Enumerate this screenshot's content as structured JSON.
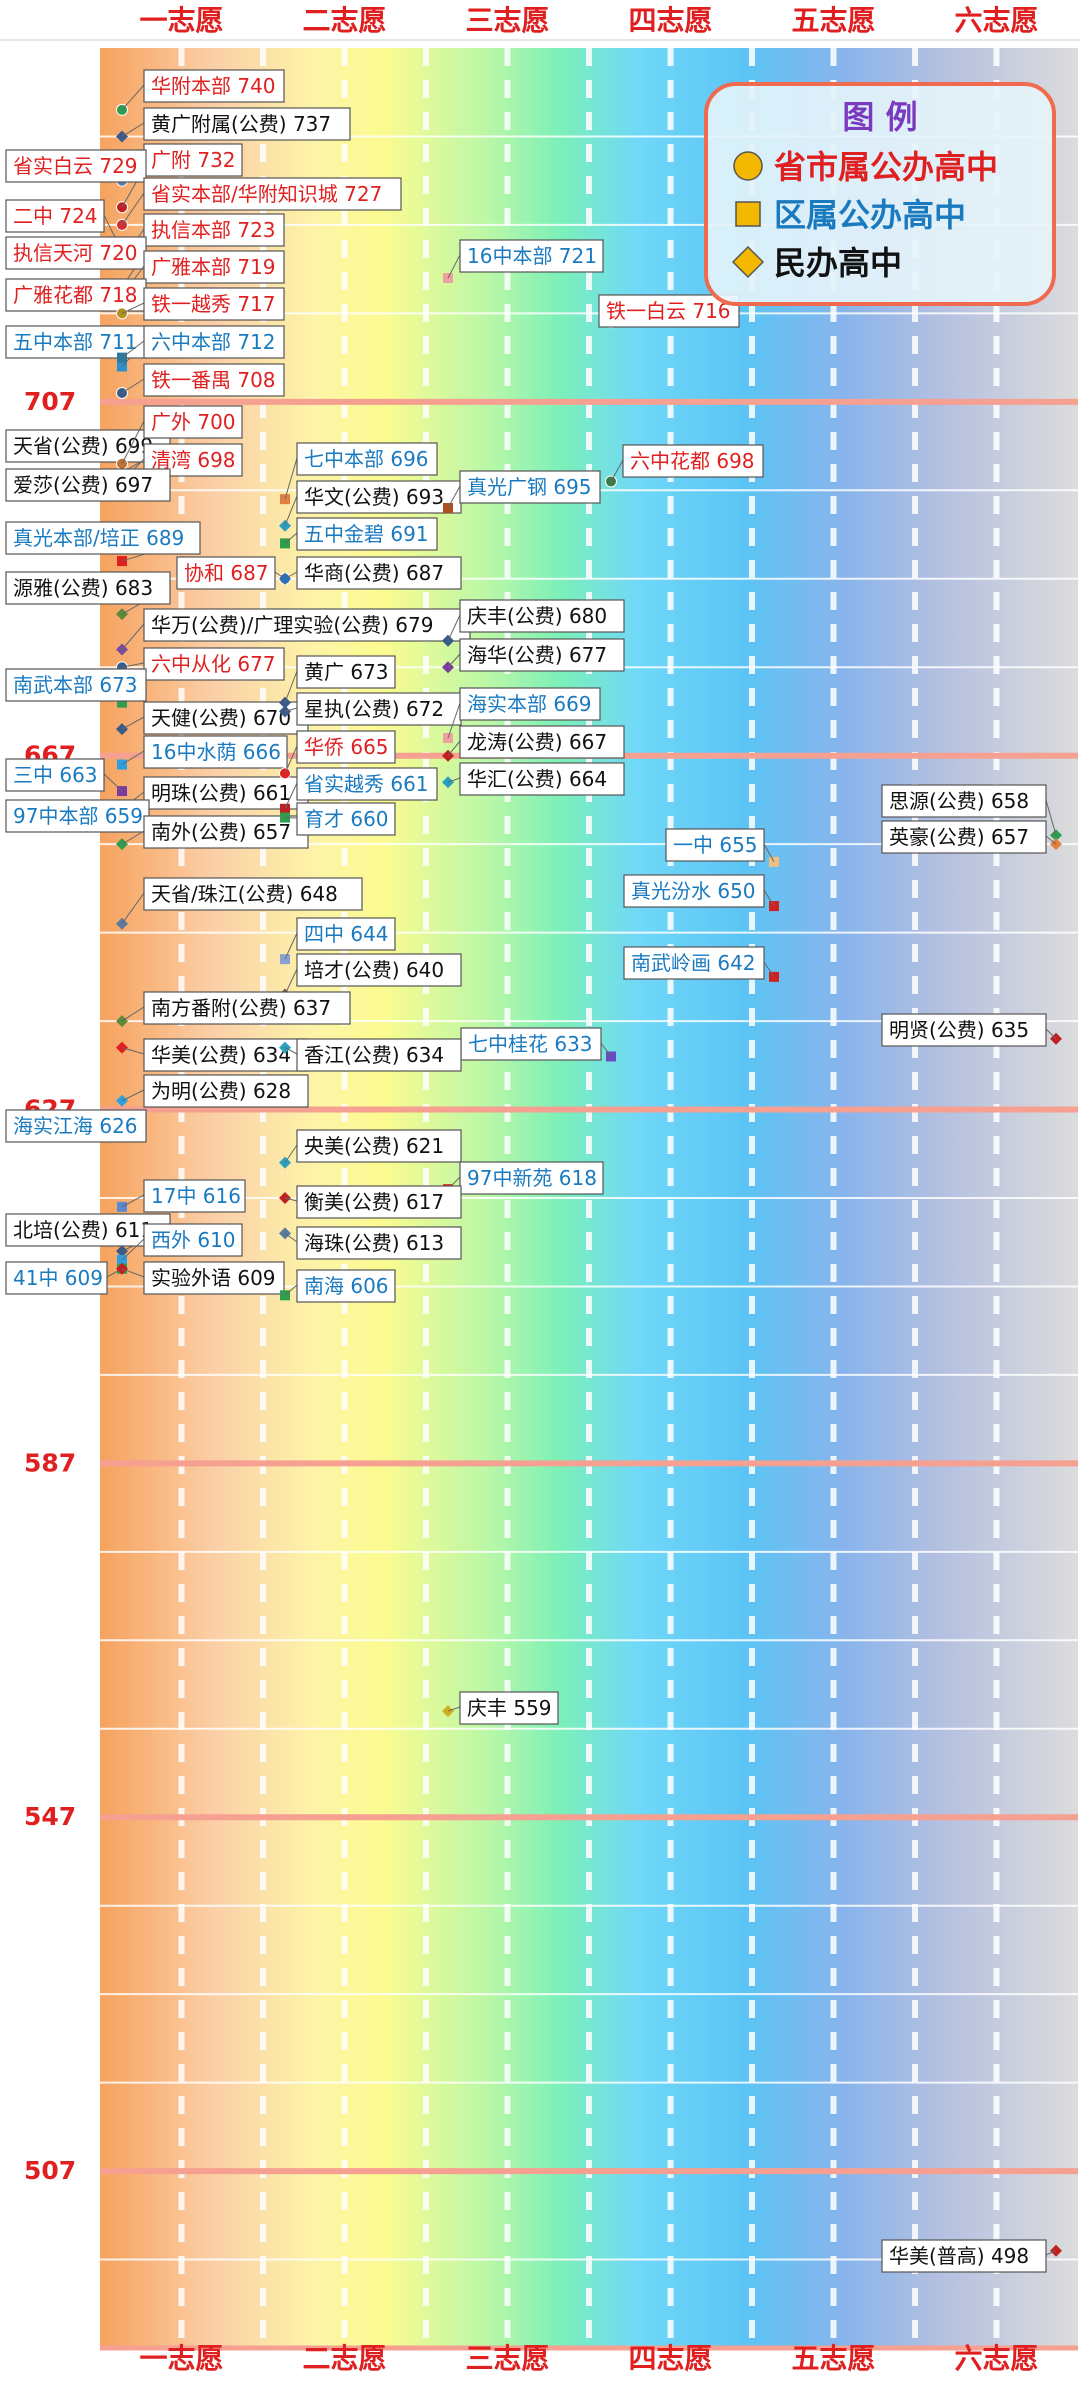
{
  "chart_data": {
    "type": "scatter",
    "title": "",
    "xlabel": "",
    "ylabel": "",
    "categories": [
      "一志愿",
      "二志愿",
      "三志愿",
      "四志愿",
      "五志愿",
      "六志愿"
    ],
    "ylim": [
      487,
      747
    ],
    "y_ticks": [
      "707",
      "667",
      "627",
      "587",
      "547",
      "507"
    ],
    "y_tick_values": [
      707,
      667,
      627,
      587,
      547,
      507
    ],
    "grid": true,
    "legend": {
      "title": "图 例",
      "placement": "top-right",
      "items": [
        {
          "label": "省市属公办高中",
          "shape": "circle",
          "color": "#f5b800",
          "text_color": "#e02020"
        },
        {
          "label": "区属公办高中",
          "shape": "square",
          "color": "#f5b800",
          "text_color": "#1a7ac0"
        },
        {
          "label": "民办高中",
          "shape": "diamond",
          "color": "#f5b800",
          "text_color": "#111111"
        }
      ]
    },
    "colors": {
      "provincial": "#e02020",
      "district": "#1a7ac0",
      "private": "#111111",
      "axis_red": "#e02020",
      "band_line": "#f5a090"
    },
    "points": [
      {
        "label": "华附本部 740",
        "school": "华附本部",
        "choice": 1,
        "score": 740,
        "group": "provincial",
        "marker": "#2e9e4e"
      },
      {
        "label": "黄广附属(公费) 737",
        "school": "黄广附属(公费)",
        "choice": 1,
        "score": 737,
        "group": "private",
        "marker": "#3a5a8a"
      },
      {
        "label": "广附 732",
        "school": "广附",
        "choice": 1,
        "score": 732,
        "group": "provincial",
        "marker": "#5a7aa0"
      },
      {
        "label": "省实白云 729",
        "school": "省实白云",
        "choice": 1,
        "score": 729,
        "group": "provincial",
        "marker": "#c02020"
      },
      {
        "label": "省实本部/华附知识城 727",
        "school": "省实本部/华附知识城",
        "choice": 1,
        "score": 727,
        "group": "provincial",
        "marker": "#d03030"
      },
      {
        "label": "二中 724",
        "school": "二中",
        "choice": 1,
        "score": 724,
        "group": "provincial",
        "marker": "#2a80c0"
      },
      {
        "label": "执信本部 723",
        "school": "执信本部",
        "choice": 1,
        "score": 723,
        "group": "provincial",
        "marker": "#e04040"
      },
      {
        "label": "执信天河 720",
        "school": "执信天河",
        "choice": 1,
        "score": 720,
        "group": "provincial",
        "marker": "#a06030"
      },
      {
        "label": "广雅本部 719",
        "school": "广雅本部",
        "choice": 1,
        "score": 719,
        "group": "provincial",
        "marker": "#7a5a3a"
      },
      {
        "label": "广雅花都 718",
        "school": "广雅花都",
        "choice": 1,
        "score": 718,
        "group": "provincial",
        "marker": "#c07030"
      },
      {
        "label": "铁一越秀 717",
        "school": "铁一越秀",
        "choice": 1,
        "score": 717,
        "group": "provincial",
        "marker": "#b09020"
      },
      {
        "label": "五中本部 711",
        "school": "五中本部",
        "choice": 1,
        "score": 711,
        "group": "district",
        "marker": "#2a90d0"
      },
      {
        "label": "六中本部 712",
        "school": "六中本部",
        "choice": 1,
        "score": 712,
        "group": "district",
        "marker": "#2a7aa0"
      },
      {
        "label": "铁一番禺 708",
        "school": "铁一番禺",
        "choice": 1,
        "score": 708,
        "group": "provincial",
        "marker": "#3a5a8a"
      },
      {
        "label": "16中本部 721",
        "school": "16中本部",
        "choice": 3,
        "score": 721,
        "group": "district",
        "marker": "#f0a0a0"
      },
      {
        "label": "铁一白云 716",
        "school": "铁一白云",
        "choice": 4,
        "score": 716,
        "group": "provincial",
        "marker": "#e0c080"
      },
      {
        "label": "天省(公费) 699",
        "school": "天省(公费)",
        "choice": 1,
        "score": 699,
        "group": "private",
        "marker": "#b07030"
      },
      {
        "label": "广外 700",
        "school": "广外",
        "choice": 1,
        "score": 700,
        "group": "provincial",
        "marker": "#c07030"
      },
      {
        "label": "清湾 698",
        "school": "清湾",
        "choice": 1,
        "score": 698,
        "group": "provincial",
        "marker": "#d03030"
      },
      {
        "label": "爱莎(公费) 697",
        "school": "爱莎(公费)",
        "choice": 1,
        "score": 697,
        "group": "private",
        "marker": "#3a5a8a"
      },
      {
        "label": "七中本部 696",
        "school": "七中本部",
        "choice": 2,
        "score": 696,
        "group": "district",
        "marker": "#e08040"
      },
      {
        "label": "华文(公费) 693",
        "school": "华文(公费)",
        "choice": 2,
        "score": 693,
        "group": "private",
        "marker": "#2aa0c0"
      },
      {
        "label": "五中金碧 691",
        "school": "五中金碧",
        "choice": 2,
        "score": 691,
        "group": "district",
        "marker": "#2e9e4e"
      },
      {
        "label": "真光本部/培正 689",
        "school": "真光本部/培正",
        "choice": 1,
        "score": 689,
        "group": "district",
        "marker": "#e02020"
      },
      {
        "label": "协和 687",
        "school": "协和",
        "choice": 2,
        "score": 687,
        "group": "provincial",
        "marker": "#a06030"
      },
      {
        "label": "华商(公费) 687",
        "school": "华商(公费)",
        "choice": 2,
        "score": 687,
        "group": "private",
        "marker": "#2a70c0"
      },
      {
        "label": "真光广钢 695",
        "school": "真光广钢",
        "choice": 3,
        "score": 695,
        "group": "district",
        "marker": "#b05020"
      },
      {
        "label": "六中花都 698",
        "school": "六中花都",
        "choice": 4,
        "score": 698,
        "group": "provincial",
        "marker": "#3a7a4a"
      },
      {
        "label": "源雅(公费) 683",
        "school": "源雅(公费)",
        "choice": 1,
        "score": 683,
        "group": "private",
        "marker": "#5a8a3a"
      },
      {
        "label": "华万(公费)/广理实验(公费) 679",
        "school": "华万(公费)/广理实验(公费)",
        "choice": 1,
        "score": 679,
        "group": "private",
        "marker": "#7a4aa0"
      },
      {
        "label": "六中从化 677",
        "school": "六中从化",
        "choice": 1,
        "score": 677,
        "group": "provincial",
        "marker": "#3a5a8a"
      },
      {
        "label": "南武本部 673",
        "school": "南武本部",
        "choice": 1,
        "score": 673,
        "group": "district",
        "marker": "#2e9e4e"
      },
      {
        "label": "天健(公费) 670",
        "school": "天健(公费)",
        "choice": 1,
        "score": 670,
        "group": "private",
        "marker": "#3a5a8a"
      },
      {
        "label": "16中水荫 666",
        "school": "16中水荫",
        "choice": 1,
        "score": 666,
        "group": "district",
        "marker": "#2aa0e0"
      },
      {
        "label": "三中 663",
        "school": "三中",
        "choice": 1,
        "score": 663,
        "group": "district",
        "marker": "#7a3aa0"
      },
      {
        "label": "明珠(公费) 661",
        "school": "明珠(公费)",
        "choice": 1,
        "score": 661,
        "group": "private",
        "marker": "#c02020"
      },
      {
        "label": "97中本部 659",
        "school": "97中本部",
        "choice": 1,
        "score": 659,
        "group": "district",
        "marker": "#2aa0e0"
      },
      {
        "label": "南外(公费) 657",
        "school": "南外(公费)",
        "choice": 1,
        "score": 657,
        "group": "private",
        "marker": "#2e9e4e"
      },
      {
        "label": "黄广 673",
        "school": "黄广",
        "choice": 2,
        "score": 673,
        "group": "private",
        "marker": "#3a5a8a"
      },
      {
        "label": "星执(公费) 672",
        "school": "星执(公费)",
        "choice": 2,
        "score": 672,
        "group": "private",
        "marker": "#3a5a8a"
      },
      {
        "label": "华侨 665",
        "school": "华侨",
        "choice": 2,
        "score": 665,
        "group": "provincial",
        "marker": "#e02020"
      },
      {
        "label": "省实越秀 661",
        "school": "省实越秀",
        "choice": 2,
        "score": 661,
        "group": "district",
        "marker": "#c02020"
      },
      {
        "label": "育才 660",
        "school": "育才",
        "choice": 2,
        "score": 660,
        "group": "district",
        "marker": "#2e9e4e"
      },
      {
        "label": "庆丰(公费) 680",
        "school": "庆丰(公费)",
        "choice": 3,
        "score": 680,
        "group": "private",
        "marker": "#3a5a8a"
      },
      {
        "label": "海华(公费) 677",
        "school": "海华(公费)",
        "choice": 3,
        "score": 677,
        "group": "private",
        "marker": "#7a3aa0"
      },
      {
        "label": "海实本部 669",
        "school": "海实本部",
        "choice": 3,
        "score": 669,
        "group": "district",
        "marker": "#f0a0a0"
      },
      {
        "label": "龙涛(公费) 667",
        "school": "龙涛(公费)",
        "choice": 3,
        "score": 667,
        "group": "private",
        "marker": "#c02020"
      },
      {
        "label": "华汇(公费) 664",
        "school": "华汇(公费)",
        "choice": 3,
        "score": 664,
        "group": "private",
        "marker": "#2aa0c0"
      },
      {
        "label": "思源(公费) 658",
        "school": "思源(公费)",
        "choice": 6,
        "score": 658,
        "group": "private",
        "marker": "#2e9e4e"
      },
      {
        "label": "英豪(公费) 657",
        "school": "英豪(公费)",
        "choice": 6,
        "score": 657,
        "group": "private",
        "marker": "#e08040"
      },
      {
        "label": "一中 655",
        "school": "一中",
        "choice": 5,
        "score": 655,
        "group": "district",
        "marker": "#f0c080"
      },
      {
        "label": "真光汾水 650",
        "school": "真光汾水",
        "choice": 5,
        "score": 650,
        "group": "district",
        "marker": "#d02020"
      },
      {
        "label": "天省/珠江(公费) 648",
        "school": "天省/珠江(公费)",
        "choice": 1,
        "score": 648,
        "group": "private",
        "marker": "#5a7aa0"
      },
      {
        "label": "四中 644",
        "school": "四中",
        "choice": 2,
        "score": 644,
        "group": "district",
        "marker": "#8aa0d0"
      },
      {
        "label": "培才(公费) 640",
        "school": "培才(公费)",
        "choice": 2,
        "score": 640,
        "group": "private",
        "marker": "#7a5a3a"
      },
      {
        "label": "南武岭画 642",
        "school": "南武岭画",
        "choice": 5,
        "score": 642,
        "group": "district",
        "marker": "#d02020"
      },
      {
        "label": "南方番附(公费) 637",
        "school": "南方番附(公费)",
        "choice": 1,
        "score": 637,
        "group": "private",
        "marker": "#5a8a3a"
      },
      {
        "label": "明贤(公费) 635",
        "school": "明贤(公费)",
        "choice": 6,
        "score": 635,
        "group": "private",
        "marker": "#c02020"
      },
      {
        "label": "七中桂花 633",
        "school": "七中桂花",
        "choice": 4,
        "score": 633,
        "group": "district",
        "marker": "#6a4ac0"
      },
      {
        "label": "华美(公费) 634",
        "school": "华美(公费)",
        "choice": 1,
        "score": 634,
        "group": "private",
        "marker": "#e02020"
      },
      {
        "label": "香江(公费) 634",
        "school": "香江(公费)",
        "choice": 2,
        "score": 634,
        "group": "private",
        "marker": "#2aa0c0"
      },
      {
        "label": "为明(公费) 628",
        "school": "为明(公费)",
        "choice": 1,
        "score": 628,
        "group": "private",
        "marker": "#2aa0e0"
      },
      {
        "label": "海实江海 626",
        "school": "海实江海",
        "choice": 1,
        "score": 626,
        "group": "district",
        "marker": "#2e9e4e"
      },
      {
        "label": "央美(公费) 621",
        "school": "央美(公费)",
        "choice": 2,
        "score": 621,
        "group": "private",
        "marker": "#2aa0c0"
      },
      {
        "label": "97中新苑 618",
        "school": "97中新苑",
        "choice": 3,
        "score": 618,
        "group": "district",
        "marker": "#e02020"
      },
      {
        "label": "衡美(公费) 617",
        "school": "衡美(公费)",
        "choice": 2,
        "score": 617,
        "group": "private",
        "marker": "#c02020"
      },
      {
        "label": "17中 616",
        "school": "17中",
        "choice": 1,
        "score": 616,
        "group": "district",
        "marker": "#5a8ad0"
      },
      {
        "label": "海珠(公费) 613",
        "school": "海珠(公费)",
        "choice": 2,
        "score": 613,
        "group": "private",
        "marker": "#5a7aa0"
      },
      {
        "label": "北培(公费) 611",
        "school": "北培(公费)",
        "choice": 1,
        "score": 611,
        "group": "private",
        "marker": "#3a5a8a"
      },
      {
        "label": "西外 610",
        "school": "西外",
        "choice": 1,
        "score": 610,
        "group": "district",
        "marker": "#2aa0e0"
      },
      {
        "label": "41中 609",
        "school": "41中",
        "choice": 1,
        "score": 609,
        "group": "district",
        "marker": "#2e9e4e"
      },
      {
        "label": "实验外语 609",
        "school": "实验外语",
        "choice": 1,
        "score": 609,
        "group": "private",
        "marker": "#c02020"
      },
      {
        "label": "南海 606",
        "school": "南海",
        "choice": 2,
        "score": 606,
        "group": "district",
        "marker": "#2e9e4e"
      },
      {
        "label": "庆丰 559",
        "school": "庆丰",
        "choice": 3,
        "score": 559,
        "group": "private",
        "marker": "#d0b020"
      },
      {
        "label": "华美(普高) 498",
        "school": "华美(普高)",
        "choice": 6,
        "score": 498,
        "group": "private",
        "marker": "#c02020"
      }
    ]
  }
}
